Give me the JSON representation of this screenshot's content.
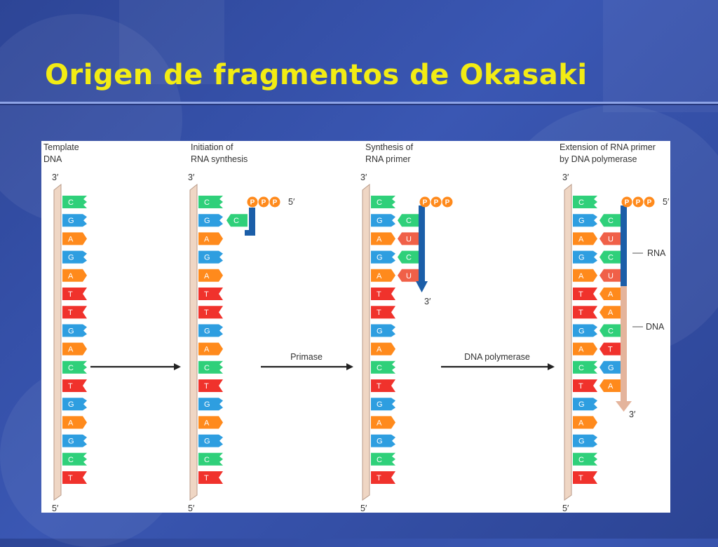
{
  "title": "Origen de fragmentos de Okasaki",
  "panels": [
    {
      "heading": [
        "Template",
        "DNA"
      ],
      "end_top": "3′",
      "end_bottom": "5′"
    },
    {
      "heading": [
        "Initiation of",
        "RNA synthesis"
      ],
      "end_top": "3′",
      "end_bottom": "5′",
      "primer_end": "5′"
    },
    {
      "heading": [
        "Synthesis of",
        "RNA primer"
      ],
      "end_top": "3′",
      "end_bottom": "5′",
      "primer_tail": "3′"
    },
    {
      "heading": [
        "Extension of RNA primer",
        "by DNA polymerase"
      ],
      "end_top": "3′",
      "end_bottom": "5′",
      "primer_end": "5′",
      "tail": "3′"
    }
  ],
  "template_sequence": [
    "C",
    "G",
    "A",
    "G",
    "A",
    "T",
    "T",
    "G",
    "A",
    "C",
    "T",
    "G",
    "A",
    "G",
    "C",
    "T"
  ],
  "triphosphate": [
    "P",
    "P",
    "P"
  ],
  "panel2_new": [
    "C"
  ],
  "panel3_new": [
    "C",
    "U",
    "C",
    "U"
  ],
  "panel4_new": [
    "C",
    "U",
    "C",
    "U",
    "A",
    "A",
    "C",
    "T",
    "G",
    "A"
  ],
  "labels": {
    "rna": "RNA",
    "dna": "DNA"
  },
  "arrows": [
    "",
    "Primase",
    "DNA polymerase"
  ],
  "colors": {
    "C": "#2fd07a",
    "G": "#2e9ee0",
    "A": "#ff8a1c",
    "T": "#f0322c",
    "U": "#f06048",
    "backbone": "#efd6c4",
    "backbone_edge": "#b89a88",
    "rna_strand": "#1b5ea8",
    "dna_strand": "#e4b49c",
    "phosphate": "#ff8a1c",
    "title": "#f2ec14"
  }
}
